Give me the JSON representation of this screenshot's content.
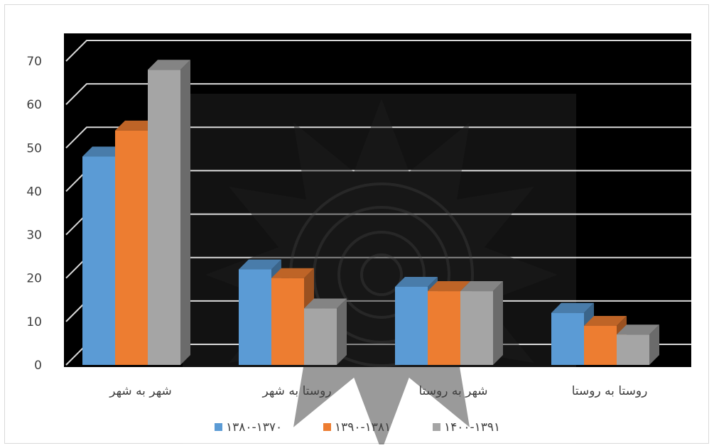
{
  "chart_data": {
    "type": "bar",
    "categories": [
      "شهر به شهر",
      "روستا به شهر",
      "شهر به روستا",
      "روستا به روستا"
    ],
    "series": [
      {
        "name": "۱۳۸۰-۱۳۷۰",
        "values": [
          48,
          22,
          18,
          12
        ],
        "color": "#5B9BD5"
      },
      {
        "name": "۱۳۹۰-۱۳۸۱",
        "values": [
          54,
          20,
          17,
          9
        ],
        "color": "#ED7D31"
      },
      {
        "name": "۱۴۰۰-۱۳۹۱",
        "values": [
          68,
          13,
          17,
          7
        ],
        "color": "#A5A5A5"
      }
    ],
    "ylim": [
      0,
      70
    ],
    "yticks": [
      0,
      10,
      20,
      30,
      40,
      50,
      60,
      70
    ],
    "grid": true,
    "legend_position": "bottom",
    "plot_background": "#000000",
    "grid_color": "#d9d9d9",
    "style": "3d-clustered-column"
  }
}
